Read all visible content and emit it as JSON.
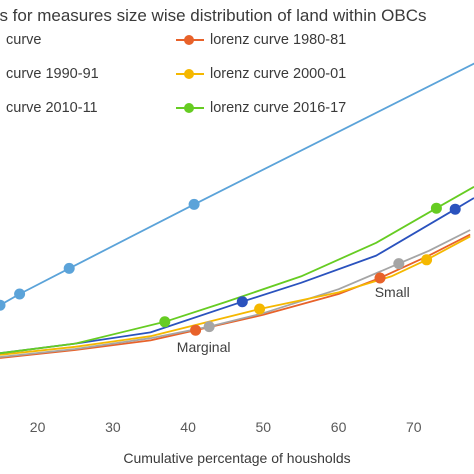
{
  "chart_data": {
    "type": "line",
    "title": "es for measures size wise distribution of land within OBCs",
    "xlabel": "Cumulative percentage of housholds",
    "ylabel": "",
    "xlim": [
      15,
      78
    ],
    "ylim": [
      0,
      100
    ],
    "x_ticks": [
      "20",
      "30",
      "40",
      "50",
      "60",
      "70"
    ],
    "grid": false,
    "legend_position": "top",
    "series": [
      {
        "name": "curve",
        "color": "#5ba3d9",
        "x": [
          15,
          17.6,
          24.2,
          40.8,
          100
        ],
        "y": [
          26.5,
          30.0,
          38.0,
          58.0,
          128
        ],
        "markers": [
          [
            15,
            26.5
          ],
          [
            17.6,
            30.0
          ],
          [
            24.2,
            38.0
          ],
          [
            40.8,
            58.0
          ]
        ]
      },
      {
        "name": "lorenz curve 1980-81",
        "color": "#e8622a",
        "x": [
          15,
          25,
          35,
          41,
          50,
          60,
          65.5,
          72,
          77.5
        ],
        "y": [
          10,
          12.5,
          15.5,
          18.7,
          23.5,
          30,
          35,
          42,
          48.6
        ],
        "markers": [
          [
            41.0,
            18.7
          ],
          [
            65.5,
            35.0
          ]
        ]
      },
      {
        "name": "curve 1990-91",
        "color": "#a5a5a5",
        "x": [
          15,
          25,
          35,
          42.8,
          50,
          60,
          68,
          72,
          77.5
        ],
        "y": [
          10.3,
          12.8,
          16.2,
          19.8,
          24,
          31.5,
          39.5,
          43.5,
          50
        ],
        "markers": [
          [
            42.8,
            19.8
          ],
          [
            68.0,
            39.5
          ]
        ]
      },
      {
        "name": "lorenz curve 2000-01",
        "color": "#f5b800",
        "x": [
          15,
          25,
          35,
          49.5,
          60,
          67,
          71.7,
          77.5
        ],
        "y": [
          11,
          13.5,
          16.8,
          25.3,
          30.5,
          35.5,
          40.7,
          48
        ],
        "markers": [
          [
            49.5,
            25.3
          ],
          [
            71.7,
            40.7
          ]
        ]
      },
      {
        "name": "curve 2010-11",
        "color": "#2a52be",
        "x": [
          15,
          25,
          35,
          47.2,
          55,
          65,
          75.5,
          78
        ],
        "y": [
          11.5,
          14.5,
          18,
          27.6,
          33.5,
          42,
          56.5,
          60
        ],
        "markers": [
          [
            47.2,
            27.6
          ],
          [
            75.5,
            56.5
          ]
        ]
      },
      {
        "name": "lorenz curve 2016-17",
        "color": "#66cc22",
        "x": [
          15,
          25,
          36.9,
          45,
          55,
          65,
          73,
          78
        ],
        "y": [
          11.5,
          14.5,
          21.3,
          27.5,
          35.5,
          46,
          56.8,
          63.5
        ],
        "markers": [
          [
            36.9,
            21.3
          ],
          [
            73.0,
            56.8
          ]
        ]
      }
    ],
    "annotations": [
      {
        "text": "Small",
        "x": 64.8,
        "y": 29.0
      },
      {
        "text": "Marginal",
        "x": 38.5,
        "y": 11.8
      }
    ]
  }
}
